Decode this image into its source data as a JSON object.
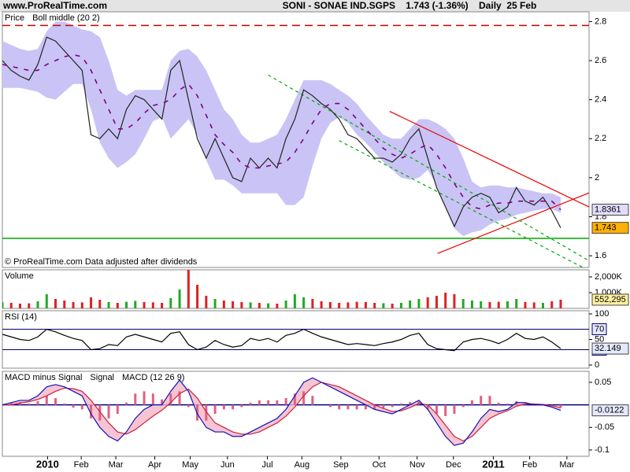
{
  "header": {
    "site": "www.ProRealTime.com",
    "title": "SONI - SONAE IND.SGPS    1.743 (-1.36%)    Daily  25 Feb"
  },
  "chart_data": [
    {
      "type": "line",
      "legend": true,
      "note": "© ProRealTime.com  Data adjusted after dividends",
      "xlim": [
        0,
        66.2
      ],
      "ylim": [
        1.54,
        2.85
      ],
      "yticks": [
        1.6,
        1.8,
        2,
        2.2,
        2.4,
        2.6,
        2.8
      ],
      "series": [
        {
          "name": "Price",
          "color": "#222222",
          "box": "#ffb000",
          "values": [
            2.6,
            2.55,
            2.52,
            2.5,
            2.58,
            2.72,
            2.7,
            2.65,
            2.6,
            2.55,
            2.22,
            2.2,
            2.25,
            2.2,
            2.35,
            2.42,
            2.4,
            2.35,
            2.3,
            2.55,
            2.6,
            2.4,
            2.2,
            2.1,
            2.2,
            2.1,
            2.0,
            1.98,
            2.1,
            2.05,
            2.1,
            2.05,
            2.2,
            2.3,
            2.45,
            2.42,
            2.38,
            2.35,
            2.3,
            2.22,
            2.2,
            2.15,
            2.1,
            2.1,
            2.08,
            2.12,
            2.2,
            2.25,
            2.1,
            1.95,
            1.85,
            1.75,
            1.85,
            1.9,
            1.92,
            1.9,
            1.82,
            1.85,
            1.95,
            1.88,
            1.86,
            1.9,
            1.83,
            1.743
          ]
        },
        {
          "name": "Boll middle (20 2)",
          "color": "#800080",
          "dash": true,
          "box": "#e0dcfa",
          "values": [
            2.58,
            2.57,
            2.56,
            2.55,
            2.55,
            2.58,
            2.6,
            2.62,
            2.63,
            2.62,
            2.55,
            2.45,
            2.35,
            2.25,
            2.25,
            2.28,
            2.33,
            2.37,
            2.38,
            2.4,
            2.45,
            2.48,
            2.42,
            2.32,
            2.22,
            2.17,
            2.13,
            2.07,
            2.05,
            2.05,
            2.06,
            2.07,
            2.08,
            2.13,
            2.2,
            2.28,
            2.35,
            2.38,
            2.38,
            2.35,
            2.3,
            2.25,
            2.2,
            2.15,
            2.12,
            2.1,
            2.12,
            2.15,
            2.17,
            2.12,
            2.05,
            1.97,
            1.9,
            1.85,
            1.84,
            1.86,
            1.87,
            1.87,
            1.88,
            1.88,
            1.88,
            1.88,
            1.88,
            1.8361
          ]
        }
      ],
      "band": {
        "color": "#c9c4f5",
        "upper": [
          2.7,
          2.68,
          2.66,
          2.65,
          2.66,
          2.75,
          2.8,
          2.8,
          2.78,
          2.76,
          2.75,
          2.72,
          2.6,
          2.45,
          2.42,
          2.45,
          2.45,
          2.45,
          2.45,
          2.6,
          2.65,
          2.66,
          2.62,
          2.55,
          2.45,
          2.35,
          2.3,
          2.22,
          2.18,
          2.18,
          2.2,
          2.22,
          2.3,
          2.4,
          2.5,
          2.5,
          2.5,
          2.48,
          2.45,
          2.42,
          2.38,
          2.32,
          2.27,
          2.22,
          2.2,
          2.2,
          2.25,
          2.3,
          2.3,
          2.28,
          2.25,
          2.2,
          2.1,
          1.98,
          1.95,
          1.96,
          1.96,
          1.95,
          1.95,
          1.94,
          1.93,
          1.92,
          1.92,
          1.9
        ],
        "lower": [
          2.46,
          2.46,
          2.46,
          2.45,
          2.44,
          2.41,
          2.4,
          2.44,
          2.48,
          2.48,
          2.35,
          2.18,
          2.1,
          2.05,
          2.08,
          2.12,
          2.2,
          2.29,
          2.31,
          2.2,
          2.25,
          2.3,
          2.22,
          2.09,
          1.99,
          1.99,
          1.96,
          1.92,
          1.92,
          1.92,
          1.92,
          1.92,
          1.86,
          1.86,
          1.9,
          2.06,
          2.2,
          2.28,
          2.31,
          2.28,
          2.22,
          2.18,
          2.13,
          2.08,
          2.04,
          2.0,
          1.99,
          2.0,
          2.04,
          1.96,
          1.85,
          1.74,
          1.7,
          1.72,
          1.73,
          1.76,
          1.78,
          1.79,
          1.81,
          1.82,
          1.83,
          1.84,
          1.84,
          1.82
        ]
      },
      "hlines": [
        {
          "value": 2.78,
          "color": "#cc0000",
          "dash": true
        },
        {
          "value": 1.689,
          "color": "#00aa00"
        }
      ],
      "trendlines": [
        {
          "x": [
            43.7,
            66.2
          ],
          "y": [
            2.34,
            1.85
          ],
          "color": "#ee0000"
        },
        {
          "x": [
            49.1,
            66.2
          ],
          "y": [
            1.612,
            1.922
          ],
          "color": "#ee0000"
        },
        {
          "x": [
            30.0,
            66.0
          ],
          "y": [
            2.526,
            1.58
          ],
          "color": "#00aa00",
          "dash": true
        },
        {
          "x": [
            38.0,
            65.5
          ],
          "y": [
            2.19,
            1.54
          ],
          "color": "#00aa00",
          "dash": true
        }
      ]
    },
    {
      "type": "bar",
      "title": "Volume",
      "title_color": "#cc0000",
      "up_color": "#22aa22",
      "down_color": "#dd2222",
      "xlim": [
        0,
        66.2
      ],
      "ylim": [
        0,
        2450000
      ],
      "yticks": [
        {
          "value": 2000000,
          "label": "2,000K"
        },
        {
          "value": 1000000,
          "label": "1,000K"
        }
      ],
      "values": [
        400000,
        350000,
        300000,
        320000,
        450000,
        900000,
        600000,
        500000,
        400000,
        380000,
        700000,
        550000,
        400000,
        350000,
        420000,
        480000,
        400000,
        380000,
        350000,
        650000,
        1200000,
        2450000,
        1500000,
        800000,
        600000,
        500000,
        450000,
        400000,
        380000,
        350000,
        320000,
        300000,
        500000,
        900000,
        700000,
        600000,
        450000,
        400000,
        350000,
        380000,
        420000,
        400000,
        350000,
        330000,
        300000,
        350000,
        500000,
        600000,
        700000,
        800000,
        1000000,
        900000,
        600000,
        500000,
        450000,
        400000,
        420000,
        450000,
        600000,
        400000,
        380000,
        350000,
        450000,
        552295
      ],
      "last_label": "552,295",
      "box": "#fff2a0"
    },
    {
      "type": "line",
      "title": "RSI (14)",
      "title_color": "#000000",
      "xlim": [
        0,
        66.2
      ],
      "ylim": [
        -6.2,
        106.2
      ],
      "yticks": [
        0,
        50,
        100
      ],
      "levels": [
        70,
        30
      ],
      "level_color": "#000066",
      "series": [
        {
          "color": "#000000",
          "box": "#e4e8ff",
          "values": [
            60,
            55,
            50,
            48,
            55,
            70,
            65,
            58,
            52,
            48,
            30,
            32,
            40,
            38,
            55,
            60,
            55,
            50,
            45,
            62,
            65,
            40,
            30,
            35,
            48,
            40,
            35,
            38,
            52,
            48,
            52,
            45,
            58,
            62,
            70,
            62,
            55,
            50,
            45,
            40,
            42,
            40,
            38,
            42,
            45,
            50,
            58,
            62,
            40,
            32,
            30,
            28,
            45,
            50,
            52,
            48,
            42,
            50,
            62,
            52,
            50,
            55,
            45,
            32.149
          ]
        }
      ]
    },
    {
      "type": "line",
      "legend": true,
      "xlim": [
        0,
        66.2
      ],
      "ylim": [
        -0.114,
        0.0744
      ],
      "yticks": [
        0.05,
        -0.05,
        -0.1
      ],
      "hlines": [
        {
          "value": 0,
          "color": "#000080"
        }
      ],
      "fill_color": "#f2b6c6",
      "xticks": [
        {
          "value": 5.1,
          "label": "2010",
          "bold": true
        },
        {
          "value": 8.9,
          "label": "Feb"
        },
        {
          "value": 12.8,
          "label": "Mar"
        },
        {
          "value": 17.2,
          "label": "Apr"
        },
        {
          "value": 21.2,
          "label": "May"
        },
        {
          "value": 25.4,
          "label": "Jun"
        },
        {
          "value": 29.9,
          "label": "Jul"
        },
        {
          "value": 33.8,
          "label": "Aug"
        },
        {
          "value": 38.2,
          "label": "Sep"
        },
        {
          "value": 42.5,
          "label": "Oct"
        },
        {
          "value": 46.8,
          "label": "Nov"
        },
        {
          "value": 50.9,
          "label": "Dec"
        },
        {
          "value": 55.4,
          "label": "2011",
          "bold": true
        },
        {
          "value": 59.5,
          "label": "Feb"
        },
        {
          "value": 63.7,
          "label": "Mar"
        }
      ],
      "series": [
        {
          "name": "MACD minus Signal",
          "type": "bar",
          "color": "#e06080",
          "values": [
            0,
            0.005,
            0.006,
            0.003,
            0.008,
            0.02,
            0.015,
            0.003,
            -0.006,
            -0.01,
            -0.03,
            -0.035,
            -0.03,
            -0.02,
            0.005,
            0.025,
            0.03,
            0.025,
            0.012,
            0.025,
            0.03,
            -0.005,
            -0.035,
            -0.035,
            -0.02,
            -0.01,
            -0.01,
            -0.005,
            0.005,
            0.01,
            0.01,
            0.01,
            0.015,
            0.025,
            0.03,
            0.02,
            0.0,
            -0.005,
            -0.01,
            -0.01,
            -0.01,
            -0.01,
            -0.01,
            -0.007,
            -0.005,
            0.003,
            0.006,
            0.007,
            -0.01,
            -0.02,
            -0.025,
            -0.02,
            -0.005,
            0.01,
            0.02,
            0.02,
            0.005,
            0.003,
            0.008,
            0.003,
            -0.002,
            -0.001,
            -0.003,
            -0.0062
          ]
        },
        {
          "name": "Signal",
          "color": "#cc2040",
          "values": [
            0.0,
            0.0,
            0.004,
            0.007,
            0.012,
            0.02,
            0.03,
            0.037,
            0.036,
            0.03,
            0.01,
            -0.015,
            -0.04,
            -0.06,
            -0.065,
            -0.055,
            -0.04,
            -0.025,
            -0.012,
            0.005,
            0.025,
            0.035,
            0.015,
            -0.015,
            -0.04,
            -0.05,
            -0.06,
            -0.065,
            -0.065,
            -0.06,
            -0.05,
            -0.04,
            -0.025,
            -0.005,
            0.02,
            0.04,
            0.05,
            0.045,
            0.04,
            0.03,
            0.02,
            0.01,
            0.0,
            -0.008,
            -0.015,
            -0.013,
            -0.006,
            0.003,
            0.0,
            -0.02,
            -0.045,
            -0.07,
            -0.08,
            -0.07,
            -0.05,
            -0.03,
            -0.02,
            -0.013,
            -0.003,
            0.002,
            0.002,
            0.001,
            -0.002,
            -0.006
          ]
        },
        {
          "name": "MACD (12 26 9)",
          "color": "#1010c0",
          "box": "#e4e8ff",
          "values": [
            0.0,
            0.005,
            0.01,
            0.01,
            0.02,
            0.04,
            0.045,
            0.04,
            0.03,
            0.02,
            -0.02,
            -0.05,
            -0.07,
            -0.08,
            -0.06,
            -0.03,
            -0.01,
            0.0,
            0.0,
            0.03,
            0.055,
            0.03,
            -0.02,
            -0.05,
            -0.06,
            -0.06,
            -0.07,
            -0.07,
            -0.06,
            -0.05,
            -0.04,
            -0.03,
            -0.01,
            0.02,
            0.05,
            0.06,
            0.05,
            0.04,
            0.03,
            0.02,
            0.01,
            0.0,
            -0.01,
            -0.015,
            -0.02,
            -0.01,
            0.0,
            0.01,
            -0.01,
            -0.04,
            -0.07,
            -0.09,
            -0.085,
            -0.06,
            -0.03,
            -0.01,
            -0.015,
            -0.01,
            0.005,
            0.005,
            0.0,
            0.0,
            -0.005,
            -0.0122
          ]
        }
      ]
    }
  ]
}
